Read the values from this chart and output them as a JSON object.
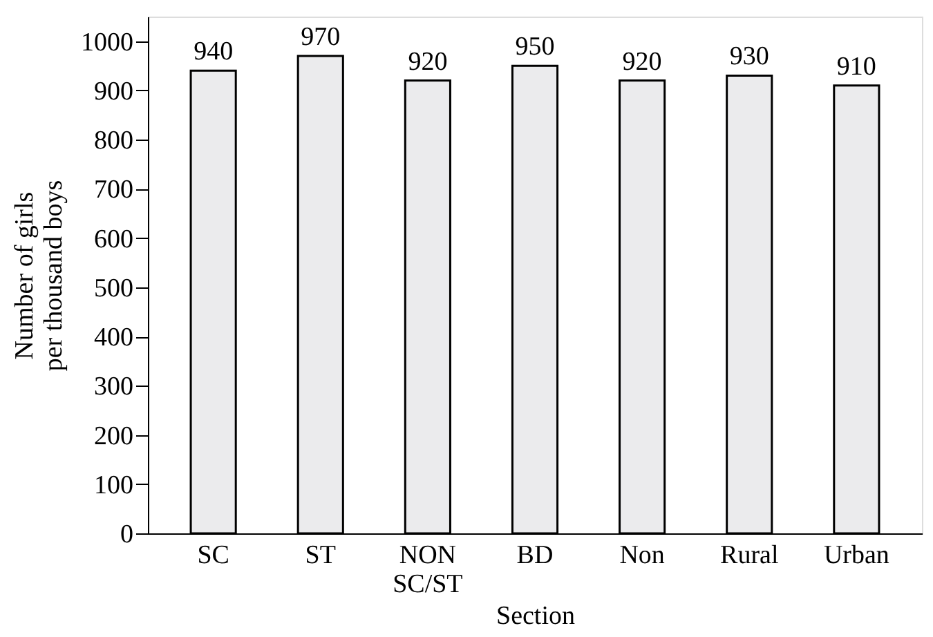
{
  "chart_data": {
    "type": "bar",
    "categories": [
      "SC",
      "ST",
      "NON\nSC/ST",
      "BD",
      "Non",
      "Rural",
      "Urban"
    ],
    "values": [
      940,
      970,
      920,
      950,
      920,
      930,
      910
    ],
    "color": "#ebebed",
    "xlabel": "Section",
    "ylabel": "Number of girls\nper thousand boys",
    "ylim": [
      0,
      1050
    ],
    "yticks": [
      0,
      100,
      200,
      300,
      400,
      500,
      600,
      700,
      800,
      900,
      1000
    ],
    "grid": false,
    "data_labels": true
  }
}
